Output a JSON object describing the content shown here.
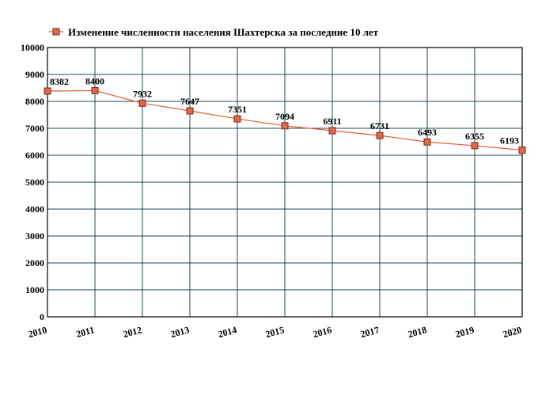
{
  "chart_data": {
    "type": "line",
    "title": "",
    "xlabel": "",
    "ylabel": "",
    "x": [
      "2010",
      "2011",
      "2012",
      "2013",
      "2014",
      "2015",
      "2016",
      "2017",
      "2018",
      "2019",
      "2020"
    ],
    "series": [
      {
        "name": "Изменение численности населения Шахтерска за последние 10 лет",
        "values": [
          8382,
          8400,
          7932,
          7647,
          7351,
          7094,
          6911,
          6731,
          6493,
          6355,
          6193
        ]
      }
    ],
    "ylim": [
      0,
      10000
    ],
    "yticks": [
      0,
      1000,
      2000,
      3000,
      4000,
      5000,
      6000,
      7000,
      8000,
      9000,
      10000
    ],
    "grid": true,
    "legend_position": "top-left",
    "colors": {
      "line": "#e05a3c",
      "marker_fill": "#e06a48",
      "marker_stroke": "#7a2a18",
      "grid": "#1d4a57",
      "frame": "#000000"
    }
  }
}
